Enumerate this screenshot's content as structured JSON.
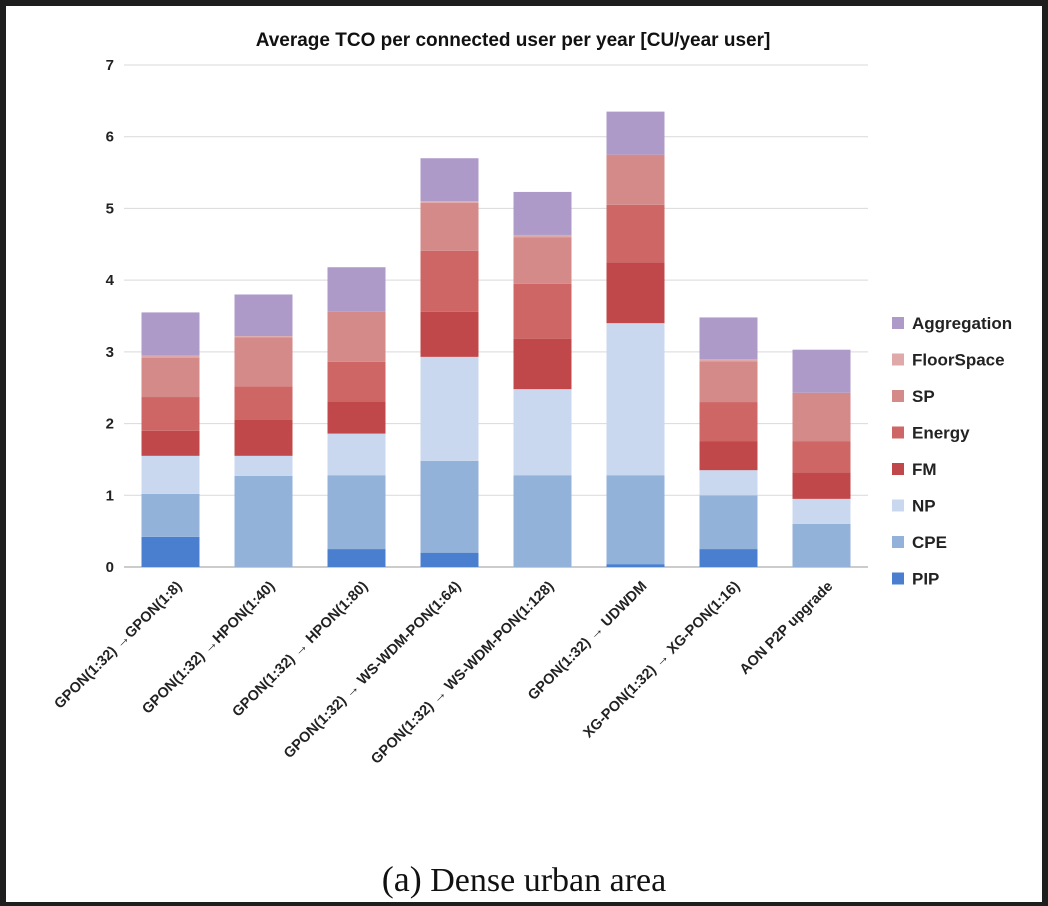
{
  "chart_data": {
    "type": "bar",
    "stacked": true,
    "title": "Average TCO per connected user per year [CU/year user]",
    "xlabel": "",
    "ylabel": "",
    "ylim": [
      0,
      7
    ],
    "yticks": [
      "0",
      "1",
      "2",
      "3",
      "4",
      "5",
      "6",
      "7"
    ],
    "grid": true,
    "legend_position": "right",
    "categories": [
      "GPON(1:32) →GPON(1:8)",
      "GPON(1:32) →HPON(1:40)",
      "GPON(1:32) → HPON(1:80)",
      "GPON(1:32) → WS-WDM-PON(1:64)",
      "GPON(1:32) → WS-WDM-PON(1:128)",
      "GPON(1:32) → UDWDM",
      "XG-PON(1:32) → XG-PON(1:16)",
      "AON P2P upgrade"
    ],
    "series": [
      {
        "name": "PIP",
        "color": "#4a7fd0",
        "values": [
          0.42,
          0.0,
          0.25,
          0.2,
          0.0,
          0.04,
          0.25,
          0.0
        ]
      },
      {
        "name": "CPE",
        "color": "#93b2da",
        "values": [
          0.6,
          1.27,
          1.03,
          1.28,
          1.28,
          1.24,
          0.75,
          0.6
        ]
      },
      {
        "name": "NP",
        "color": "#c9d8ef",
        "values": [
          0.53,
          0.28,
          0.58,
          1.45,
          1.2,
          2.12,
          0.35,
          0.35
        ]
      },
      {
        "name": "FM",
        "color": "#c0484a",
        "values": [
          0.35,
          0.5,
          0.45,
          0.63,
          0.7,
          0.85,
          0.4,
          0.37
        ]
      },
      {
        "name": "Energy",
        "color": "#cd6665",
        "values": [
          0.47,
          0.47,
          0.55,
          0.85,
          0.77,
          0.8,
          0.55,
          0.43
        ]
      },
      {
        "name": "SP",
        "color": "#d48a89",
        "values": [
          0.55,
          0.68,
          0.7,
          0.67,
          0.65,
          0.7,
          0.57,
          0.68
        ]
      },
      {
        "name": "FloorSpace",
        "color": "#e0a9a9",
        "values": [
          0.03,
          0.02,
          0.0,
          0.02,
          0.03,
          0.0,
          0.03,
          0.0
        ]
      },
      {
        "name": "Aggregation",
        "color": "#ad9ac9",
        "values": [
          0.6,
          0.58,
          0.62,
          0.6,
          0.6,
          0.6,
          0.58,
          0.6
        ]
      }
    ]
  },
  "caption": {
    "letter": "(a)",
    "text": "Dense urban area"
  }
}
